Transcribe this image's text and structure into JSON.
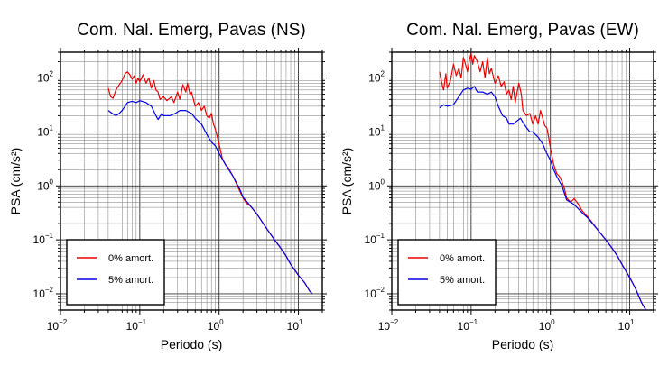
{
  "chart_data": [
    {
      "type": "line",
      "title": "Com. Nal. Emerg, Pavas (NS)",
      "xlabel": "Periodo (s)",
      "ylabel": "PSA (cm/s²)",
      "xscale": "log",
      "yscale": "log",
      "xlim": [
        0.01,
        20
      ],
      "ylim": [
        0.005,
        300
      ],
      "x_ticks": [
        {
          "base": "10",
          "exp": "−2"
        },
        {
          "base": "10",
          "exp": "−1"
        },
        {
          "base": "10",
          "exp": "0"
        },
        {
          "base": "10",
          "exp": "1"
        }
      ],
      "y_ticks": [
        {
          "base": "10",
          "exp": "−2"
        },
        {
          "base": "10",
          "exp": "−1"
        },
        {
          "base": "10",
          "exp": "0"
        },
        {
          "base": "10",
          "exp": "1"
        },
        {
          "base": "10",
          "exp": "2"
        }
      ],
      "grid": true,
      "legend_position": "bottom-left",
      "series": [
        {
          "name": "0% amort.",
          "color": "#ee0000",
          "points": [
            [
              0.04,
              65
            ],
            [
              0.043,
              45
            ],
            [
              0.046,
              42
            ],
            [
              0.05,
              60
            ],
            [
              0.055,
              75
            ],
            [
              0.06,
              90
            ],
            [
              0.065,
              120
            ],
            [
              0.07,
              130
            ],
            [
              0.075,
              115
            ],
            [
              0.08,
              95
            ],
            [
              0.085,
              110
            ],
            [
              0.09,
              80
            ],
            [
              0.095,
              100
            ],
            [
              0.1,
              85
            ],
            [
              0.11,
              115
            ],
            [
              0.12,
              80
            ],
            [
              0.13,
              100
            ],
            [
              0.14,
              65
            ],
            [
              0.15,
              90
            ],
            [
              0.16,
              60
            ],
            [
              0.17,
              55
            ],
            [
              0.18,
              40
            ],
            [
              0.2,
              45
            ],
            [
              0.22,
              38
            ],
            [
              0.25,
              45
            ],
            [
              0.27,
              35
            ],
            [
              0.3,
              55
            ],
            [
              0.32,
              40
            ],
            [
              0.35,
              75
            ],
            [
              0.38,
              55
            ],
            [
              0.4,
              80
            ],
            [
              0.43,
              50
            ],
            [
              0.45,
              55
            ],
            [
              0.5,
              30
            ],
            [
              0.55,
              35
            ],
            [
              0.6,
              25
            ],
            [
              0.65,
              30
            ],
            [
              0.7,
              20
            ],
            [
              0.75,
              18
            ],
            [
              0.8,
              22
            ],
            [
              0.85,
              14
            ],
            [
              0.9,
              11
            ],
            [
              1.0,
              6
            ],
            [
              1.1,
              3.2
            ],
            [
              1.2,
              2.5
            ],
            [
              1.3,
              2.2
            ],
            [
              1.5,
              1.5
            ],
            [
              1.7,
              1.0
            ],
            [
              2.0,
              0.6
            ],
            [
              2.2,
              0.48
            ],
            [
              2.5,
              0.42
            ],
            [
              3,
              0.3
            ],
            [
              4,
              0.16
            ],
            [
              5,
              0.1
            ],
            [
              6,
              0.07
            ],
            [
              7,
              0.05
            ],
            [
              8,
              0.035
            ],
            [
              9,
              0.028
            ],
            [
              10,
              0.022
            ],
            [
              12,
              0.016
            ],
            [
              14,
              0.011
            ],
            [
              15,
              0.01
            ]
          ]
        },
        {
          "name": "5% amort.",
          "color": "#0000ee",
          "points": [
            [
              0.04,
              25
            ],
            [
              0.045,
              22
            ],
            [
              0.05,
              20
            ],
            [
              0.055,
              22
            ],
            [
              0.06,
              25
            ],
            [
              0.07,
              35
            ],
            [
              0.08,
              37
            ],
            [
              0.09,
              35
            ],
            [
              0.1,
              38
            ],
            [
              0.12,
              35
            ],
            [
              0.14,
              30
            ],
            [
              0.16,
              20
            ],
            [
              0.17,
              17
            ],
            [
              0.19,
              22
            ],
            [
              0.2,
              20
            ],
            [
              0.24,
              20
            ],
            [
              0.28,
              22
            ],
            [
              0.32,
              25
            ],
            [
              0.38,
              25
            ],
            [
              0.45,
              22
            ],
            [
              0.5,
              18
            ],
            [
              0.6,
              14
            ],
            [
              0.7,
              9
            ],
            [
              0.8,
              6.5
            ],
            [
              0.9,
              5.5
            ],
            [
              1.0,
              4
            ],
            [
              1.2,
              2.5
            ],
            [
              1.5,
              1.5
            ],
            [
              1.8,
              0.9
            ],
            [
              2.0,
              0.62
            ],
            [
              2.5,
              0.42
            ],
            [
              3,
              0.3
            ],
            [
              4,
              0.16
            ],
            [
              5,
              0.1
            ],
            [
              6,
              0.07
            ],
            [
              7,
              0.05
            ],
            [
              8,
              0.035
            ],
            [
              10,
              0.022
            ],
            [
              12,
              0.016
            ],
            [
              14,
              0.011
            ],
            [
              15,
              0.01
            ]
          ]
        }
      ]
    },
    {
      "type": "line",
      "title": "Com. Nal. Emerg, Pavas (EW)",
      "xlabel": "Periodo (s)",
      "ylabel": "PSA (cm/s²)",
      "xscale": "log",
      "yscale": "log",
      "xlim": [
        0.01,
        20
      ],
      "ylim": [
        0.005,
        300
      ],
      "x_ticks": [
        {
          "base": "10",
          "exp": "−2"
        },
        {
          "base": "10",
          "exp": "−1"
        },
        {
          "base": "10",
          "exp": "0"
        },
        {
          "base": "10",
          "exp": "1"
        }
      ],
      "y_ticks": [
        {
          "base": "10",
          "exp": "−2"
        },
        {
          "base": "10",
          "exp": "−1"
        },
        {
          "base": "10",
          "exp": "0"
        },
        {
          "base": "10",
          "exp": "1"
        },
        {
          "base": "10",
          "exp": "2"
        }
      ],
      "grid": true,
      "legend_position": "bottom-left",
      "series": [
        {
          "name": "0% amort.",
          "color": "#ee0000",
          "points": [
            [
              0.04,
              130
            ],
            [
              0.042,
              90
            ],
            [
              0.045,
              60
            ],
            [
              0.048,
              120
            ],
            [
              0.05,
              65
            ],
            [
              0.055,
              90
            ],
            [
              0.06,
              180
            ],
            [
              0.065,
              110
            ],
            [
              0.07,
              150
            ],
            [
              0.075,
              100
            ],
            [
              0.08,
              240
            ],
            [
              0.085,
              180
            ],
            [
              0.09,
              130
            ],
            [
              0.095,
              210
            ],
            [
              0.1,
              290
            ],
            [
              0.105,
              180
            ],
            [
              0.11,
              260
            ],
            [
              0.12,
              200
            ],
            [
              0.13,
              130
            ],
            [
              0.14,
              200
            ],
            [
              0.15,
              100
            ],
            [
              0.16,
              240
            ],
            [
              0.17,
              120
            ],
            [
              0.18,
              150
            ],
            [
              0.2,
              80
            ],
            [
              0.22,
              110
            ],
            [
              0.24,
              70
            ],
            [
              0.26,
              85
            ],
            [
              0.28,
              50
            ],
            [
              0.3,
              60
            ],
            [
              0.32,
              40
            ],
            [
              0.34,
              70
            ],
            [
              0.36,
              35
            ],
            [
              0.38,
              55
            ],
            [
              0.4,
              80
            ],
            [
              0.43,
              50
            ],
            [
              0.45,
              25
            ],
            [
              0.5,
              20
            ],
            [
              0.55,
              22
            ],
            [
              0.6,
              14
            ],
            [
              0.65,
              20
            ],
            [
              0.7,
              14
            ],
            [
              0.75,
              25
            ],
            [
              0.8,
              18
            ],
            [
              0.85,
              13
            ],
            [
              0.9,
              12
            ],
            [
              0.95,
              8
            ],
            [
              1.0,
              5
            ],
            [
              1.1,
              2.5
            ],
            [
              1.2,
              1.7
            ],
            [
              1.3,
              1.5
            ],
            [
              1.4,
              1.2
            ],
            [
              1.5,
              0.9
            ],
            [
              1.6,
              0.6
            ],
            [
              1.8,
              0.5
            ],
            [
              2.0,
              0.58
            ],
            [
              2.2,
              0.48
            ],
            [
              2.5,
              0.35
            ],
            [
              3,
              0.26
            ],
            [
              4,
              0.15
            ],
            [
              5,
              0.1
            ],
            [
              6,
              0.07
            ],
            [
              7,
              0.05
            ],
            [
              8,
              0.035
            ],
            [
              10,
              0.02
            ],
            [
              12,
              0.012
            ],
            [
              14,
              0.007
            ],
            [
              16,
              0.005
            ]
          ]
        },
        {
          "name": "5% amort.",
          "color": "#0000ee",
          "points": [
            [
              0.04,
              28
            ],
            [
              0.045,
              32
            ],
            [
              0.05,
              30
            ],
            [
              0.06,
              32
            ],
            [
              0.07,
              45
            ],
            [
              0.08,
              60
            ],
            [
              0.09,
              65
            ],
            [
              0.1,
              62
            ],
            [
              0.11,
              70
            ],
            [
              0.12,
              55
            ],
            [
              0.14,
              55
            ],
            [
              0.16,
              50
            ],
            [
              0.18,
              55
            ],
            [
              0.2,
              45
            ],
            [
              0.22,
              30
            ],
            [
              0.25,
              20
            ],
            [
              0.28,
              18
            ],
            [
              0.3,
              14
            ],
            [
              0.34,
              14
            ],
            [
              0.38,
              16
            ],
            [
              0.42,
              18
            ],
            [
              0.45,
              15
            ],
            [
              0.5,
              12
            ],
            [
              0.55,
              10
            ],
            [
              0.6,
              10
            ],
            [
              0.7,
              8
            ],
            [
              0.8,
              6
            ],
            [
              0.9,
              4
            ],
            [
              1.0,
              3
            ],
            [
              1.1,
              2
            ],
            [
              1.2,
              1.5
            ],
            [
              1.4,
              1.0
            ],
            [
              1.6,
              0.55
            ],
            [
              2.0,
              0.45
            ],
            [
              2.5,
              0.32
            ],
            [
              3,
              0.25
            ],
            [
              4,
              0.15
            ],
            [
              5,
              0.1
            ],
            [
              6,
              0.07
            ],
            [
              7,
              0.05
            ],
            [
              8,
              0.035
            ],
            [
              10,
              0.02
            ],
            [
              12,
              0.012
            ],
            [
              14,
              0.007
            ],
            [
              16,
              0.005
            ]
          ]
        }
      ]
    }
  ]
}
